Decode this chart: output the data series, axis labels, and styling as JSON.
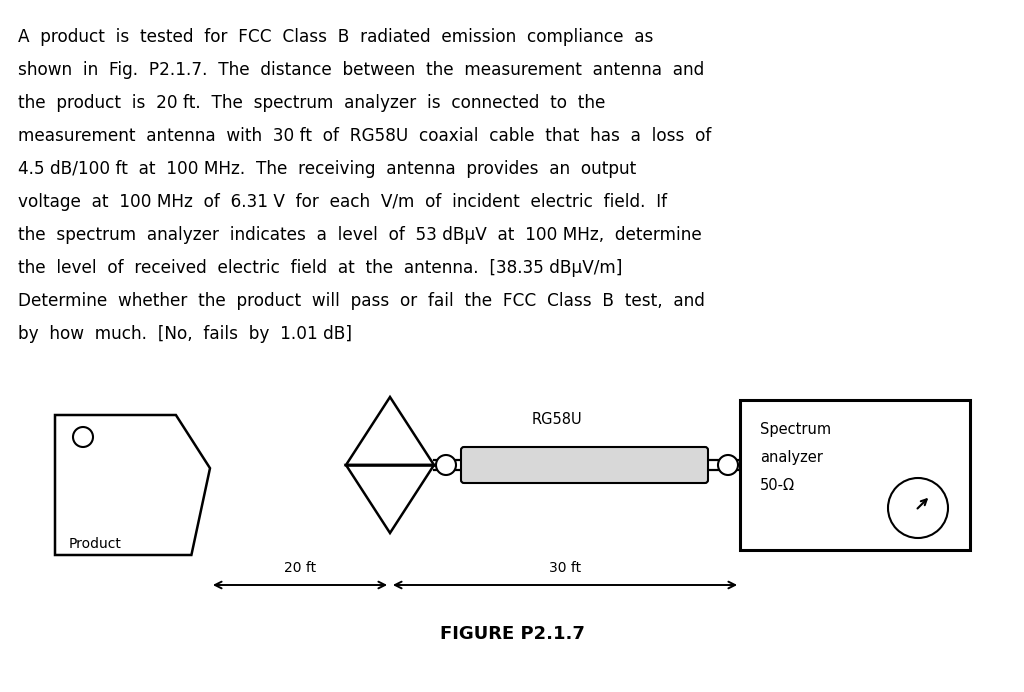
{
  "title": "FIGURE P2.1.7",
  "paragraph_lines": [
    "A  product  is  tested  for  FCC  Class  B  radiated  emission  compliance  as",
    "shown  in  Fig.  P2.1.7.  The  distance  between  the  measurement  antenna  and",
    "the  product  is  20 ft.  The  spectrum  analyzer  is  connected  to  the",
    "measurement  antenna  with  30 ft  of  RG58U  coaxial  cable  that  has  a  loss  of",
    "4.5 dB/100 ft  at  100 MHz.  The  receiving  antenna  provides  an  output",
    "voltage  at  100 MHz  of  6.31 V  for  each  V/m  of  incident  electric  field.  If",
    "the  spectrum  analyzer  indicates  a  level  of  53 dBμV  at  100 MHz,  determine",
    "the  level  of  received  electric  field  at  the  antenna.  [38.35 dBμV/m]",
    "Determine  whether  the  product  will  pass  or  fail  the  FCC  Class  B  test,  and",
    "by  how  much.  [No,  fails  by  1.01 dB]"
  ],
  "bg_color": "#ffffff",
  "text_color": "#000000",
  "product_label": "Product",
  "cable_label": "RG58U",
  "spectrum_label_line1": "Spectrum",
  "spectrum_label_line2": "analyzer",
  "spectrum_label_line3": "50-Ω",
  "dist1_label": "20 ft",
  "dist2_label": "30 ft"
}
